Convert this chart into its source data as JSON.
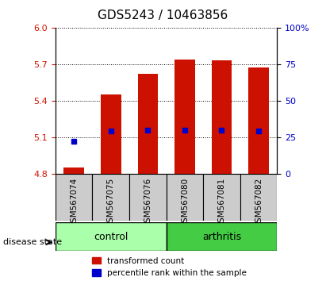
{
  "title": "GDS5243 / 10463856",
  "samples": [
    "GSM567074",
    "GSM567075",
    "GSM567076",
    "GSM567080",
    "GSM567081",
    "GSM567082"
  ],
  "bar_bottoms": [
    4.8,
    4.8,
    4.8,
    4.8,
    4.8,
    4.8
  ],
  "bar_tops": [
    4.855,
    5.455,
    5.625,
    5.745,
    5.735,
    5.675
  ],
  "percentile_values": [
    5.07,
    5.155,
    5.16,
    5.16,
    5.16,
    5.155
  ],
  "ylim": [
    4.8,
    6.0
  ],
  "y_ticks": [
    4.8,
    5.1,
    5.4,
    5.7,
    6.0
  ],
  "y_right_ticks": [
    0,
    25,
    50,
    75,
    100
  ],
  "bar_color": "#cc1100",
  "percentile_color": "#0000cc",
  "control_color": "#aaffaa",
  "arthritis_color": "#44cc44",
  "tick_label_color_left": "#cc1100",
  "tick_label_color_right": "#0000cc",
  "bar_width": 0.55,
  "xlabel_area_color": "#cccccc",
  "legend_items": [
    "transformed count",
    "percentile rank within the sample"
  ],
  "legend_colors": [
    "#cc1100",
    "#0000cc"
  ]
}
